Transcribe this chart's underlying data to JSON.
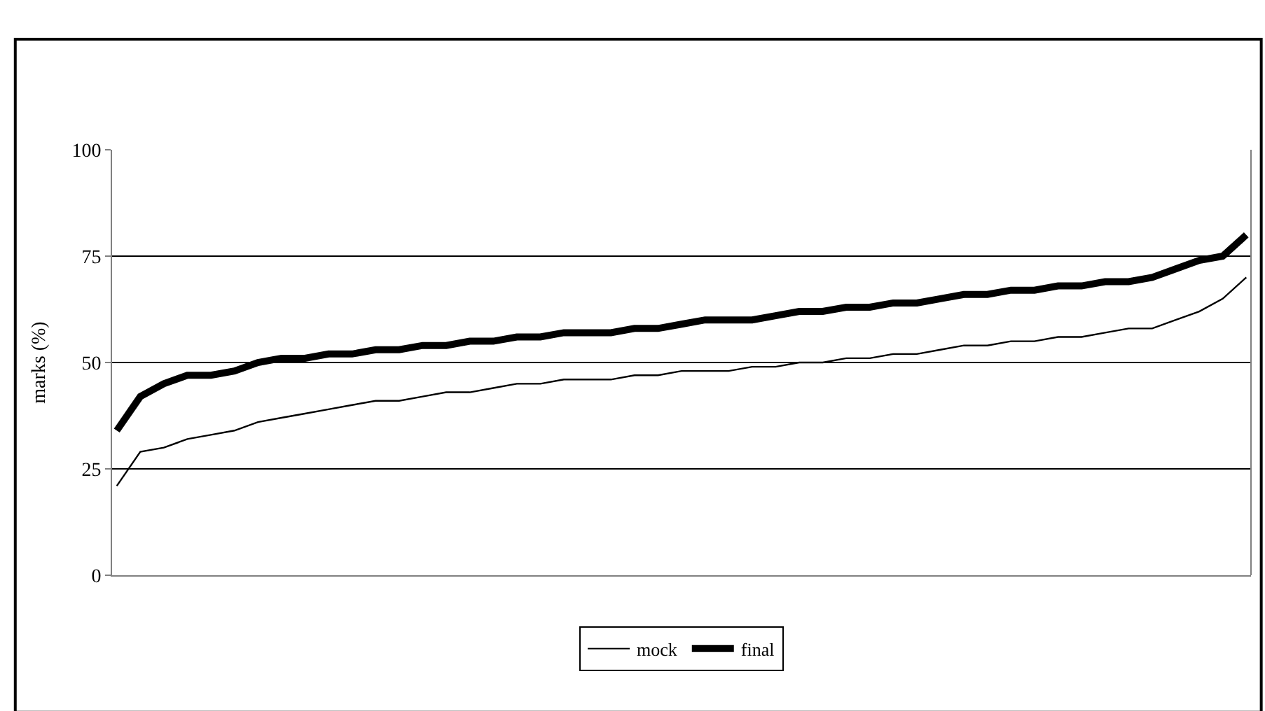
{
  "chart_data": {
    "type": "line",
    "ylabel": "marks (%)",
    "categories": [
      null,
      null,
      null,
      null,
      null,
      null,
      null,
      null,
      null,
      null,
      null,
      null,
      null,
      null,
      null,
      null,
      null,
      null,
      null,
      null,
      null,
      null,
      null,
      null,
      null,
      null,
      null,
      null,
      null,
      null,
      null,
      null,
      null,
      null,
      null,
      null,
      null,
      null,
      null,
      null,
      null,
      null,
      null,
      null,
      null,
      null,
      null,
      null,
      null
    ],
    "series": [
      {
        "name": "mock",
        "color": "#000000",
        "values": [
          21,
          29,
          30,
          32,
          33,
          34,
          36,
          37,
          38,
          39,
          40,
          41,
          41,
          42,
          43,
          43,
          44,
          45,
          45,
          46,
          46,
          46,
          47,
          47,
          48,
          48,
          48,
          49,
          49,
          50,
          50,
          51,
          51,
          52,
          52,
          53,
          54,
          54,
          55,
          55,
          56,
          56,
          57,
          58,
          58,
          60,
          62,
          65,
          70
        ]
      },
      {
        "name": "final",
        "color": "#000000",
        "values": [
          34,
          42,
          45,
          47,
          47,
          48,
          50,
          51,
          51,
          52,
          52,
          53,
          53,
          54,
          54,
          55,
          55,
          56,
          56,
          57,
          57,
          57,
          58,
          58,
          59,
          60,
          60,
          60,
          61,
          62,
          62,
          63,
          63,
          64,
          64,
          65,
          66,
          66,
          67,
          67,
          68,
          68,
          69,
          69,
          70,
          72,
          74,
          75,
          80
        ]
      }
    ],
    "ylim": [
      0,
      100
    ],
    "yticks": [
      0,
      25,
      50,
      75,
      100
    ],
    "grid": "y",
    "legend": "bottom",
    "marker": "none",
    "line_style": "solid"
  }
}
